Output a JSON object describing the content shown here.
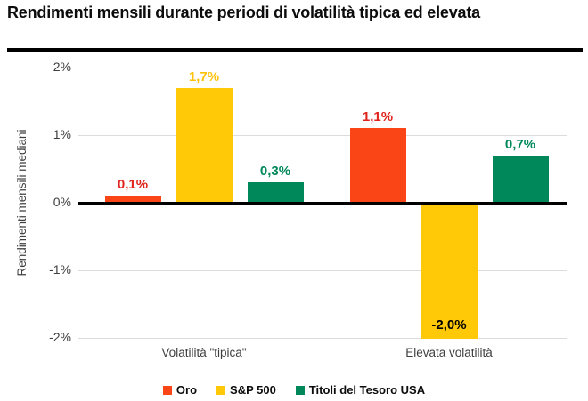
{
  "title": "Rendimenti mensili durante periodi di volatilità tipica ed elevata",
  "chart_data": {
    "type": "bar",
    "categories": [
      "Volatilità \"tipica\"",
      "Elevata volatilità"
    ],
    "series": [
      {
        "name": "Oro",
        "values": [
          0.1,
          1.1
        ],
        "labels": [
          "0,1%",
          "1,1%"
        ],
        "color": "#FA4616",
        "label_colors": [
          "#E0231A",
          "#E0231A"
        ]
      },
      {
        "name": "S&P 500",
        "values": [
          1.7,
          -2.0
        ],
        "labels": [
          "1,7%",
          "-2,0%"
        ],
        "color": "#FFC907",
        "label_colors": [
          "#FFC10A",
          "#000000"
        ]
      },
      {
        "name": "Titoli del Tesoro USA",
        "values": [
          0.3,
          0.7
        ],
        "labels": [
          "0,3%",
          "0,7%"
        ],
        "color": "#00875A",
        "label_colors": [
          "#00875A",
          "#00875A"
        ]
      }
    ],
    "ylabel": "Rendimenti mensili mediani",
    "xlabel": "",
    "ylim": [
      -2,
      2
    ],
    "yticks": [
      {
        "value": 2,
        "label": "2%"
      },
      {
        "value": 1,
        "label": "1%"
      },
      {
        "value": 0,
        "label": "0%"
      },
      {
        "value": -1,
        "label": "-1%"
      },
      {
        "value": -2,
        "label": "-2%"
      }
    ],
    "grid": true,
    "legend_position": "bottom"
  },
  "colors": {
    "gridline": "#DCDCDC",
    "zero_line": "#000000",
    "tick_text": "#3f3f3f",
    "title_text": "#0c0c0c",
    "title_rule": "#000000"
  }
}
